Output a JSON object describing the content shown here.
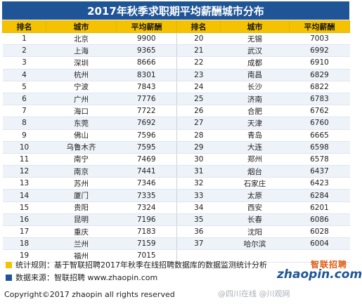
{
  "title": "2017年秋季求职期平均薪酬城市分布",
  "headers": {
    "rank": "排名",
    "city": "城市",
    "salary": "平均薪酬"
  },
  "left_rows": [
    {
      "rank": "1",
      "city": "北京",
      "salary": "9900"
    },
    {
      "rank": "2",
      "city": "上海",
      "salary": "9365"
    },
    {
      "rank": "3",
      "city": "深圳",
      "salary": "8666"
    },
    {
      "rank": "4",
      "city": "杭州",
      "salary": "8301"
    },
    {
      "rank": "5",
      "city": "宁波",
      "salary": "7843"
    },
    {
      "rank": "6",
      "city": "广州",
      "salary": "7776"
    },
    {
      "rank": "7",
      "city": "海口",
      "salary": "7722"
    },
    {
      "rank": "8",
      "city": "东莞",
      "salary": "7692"
    },
    {
      "rank": "9",
      "city": "佛山",
      "salary": "7596"
    },
    {
      "rank": "10",
      "city": "乌鲁木齐",
      "salary": "7595"
    },
    {
      "rank": "11",
      "city": "南宁",
      "salary": "7469"
    },
    {
      "rank": "12",
      "city": "南京",
      "salary": "7441"
    },
    {
      "rank": "13",
      "city": "苏州",
      "salary": "7346"
    },
    {
      "rank": "14",
      "city": "厦门",
      "salary": "7335"
    },
    {
      "rank": "15",
      "city": "贵阳",
      "salary": "7324"
    },
    {
      "rank": "16",
      "city": "昆明",
      "salary": "7196"
    },
    {
      "rank": "17",
      "city": "重庆",
      "salary": "7183"
    },
    {
      "rank": "18",
      "city": "兰州",
      "salary": "7159"
    },
    {
      "rank": "19",
      "city": "福州",
      "salary": "7015"
    }
  ],
  "right_rows": [
    {
      "rank": "20",
      "city": "无锡",
      "salary": "7003"
    },
    {
      "rank": "21",
      "city": "武汉",
      "salary": "6992"
    },
    {
      "rank": "22",
      "city": "成都",
      "salary": "6910"
    },
    {
      "rank": "23",
      "city": "南昌",
      "salary": "6829"
    },
    {
      "rank": "24",
      "city": "长沙",
      "salary": "6822"
    },
    {
      "rank": "25",
      "city": "济南",
      "salary": "6783"
    },
    {
      "rank": "26",
      "city": "合肥",
      "salary": "6762"
    },
    {
      "rank": "27",
      "city": "天津",
      "salary": "6760"
    },
    {
      "rank": "28",
      "city": "青岛",
      "salary": "6665"
    },
    {
      "rank": "29",
      "city": "大连",
      "salary": "6598"
    },
    {
      "rank": "30",
      "city": "郑州",
      "salary": "6578"
    },
    {
      "rank": "31",
      "city": "烟台",
      "salary": "6437"
    },
    {
      "rank": "32",
      "city": "石家庄",
      "salary": "6423"
    },
    {
      "rank": "33",
      "city": "太原",
      "salary": "6284"
    },
    {
      "rank": "34",
      "city": "西安",
      "salary": "6201"
    },
    {
      "rank": "35",
      "city": "长春",
      "salary": "6086"
    },
    {
      "rank": "36",
      "city": "沈阳",
      "salary": "6028"
    },
    {
      "rank": "37",
      "city": "哈尔滨",
      "salary": "6004"
    }
  ],
  "notes": {
    "rule": "统计规则：基于智联招聘2017年秋季在线招聘数据库的数据监测统计分析",
    "source": "数据来源：智联招聘 www.zhaopin.com"
  },
  "logo": {
    "cn": "智联招聘",
    "en": "zhaopin.com"
  },
  "footer": "Copyright©2017 zhaopin all rights reserved",
  "watermark": "@四川在线  @川观网",
  "colors": {
    "title_bg": "#1f5596",
    "header_bg": "#f4c200",
    "rule_square": "#f4c200",
    "source_square": "#1f5596"
  }
}
